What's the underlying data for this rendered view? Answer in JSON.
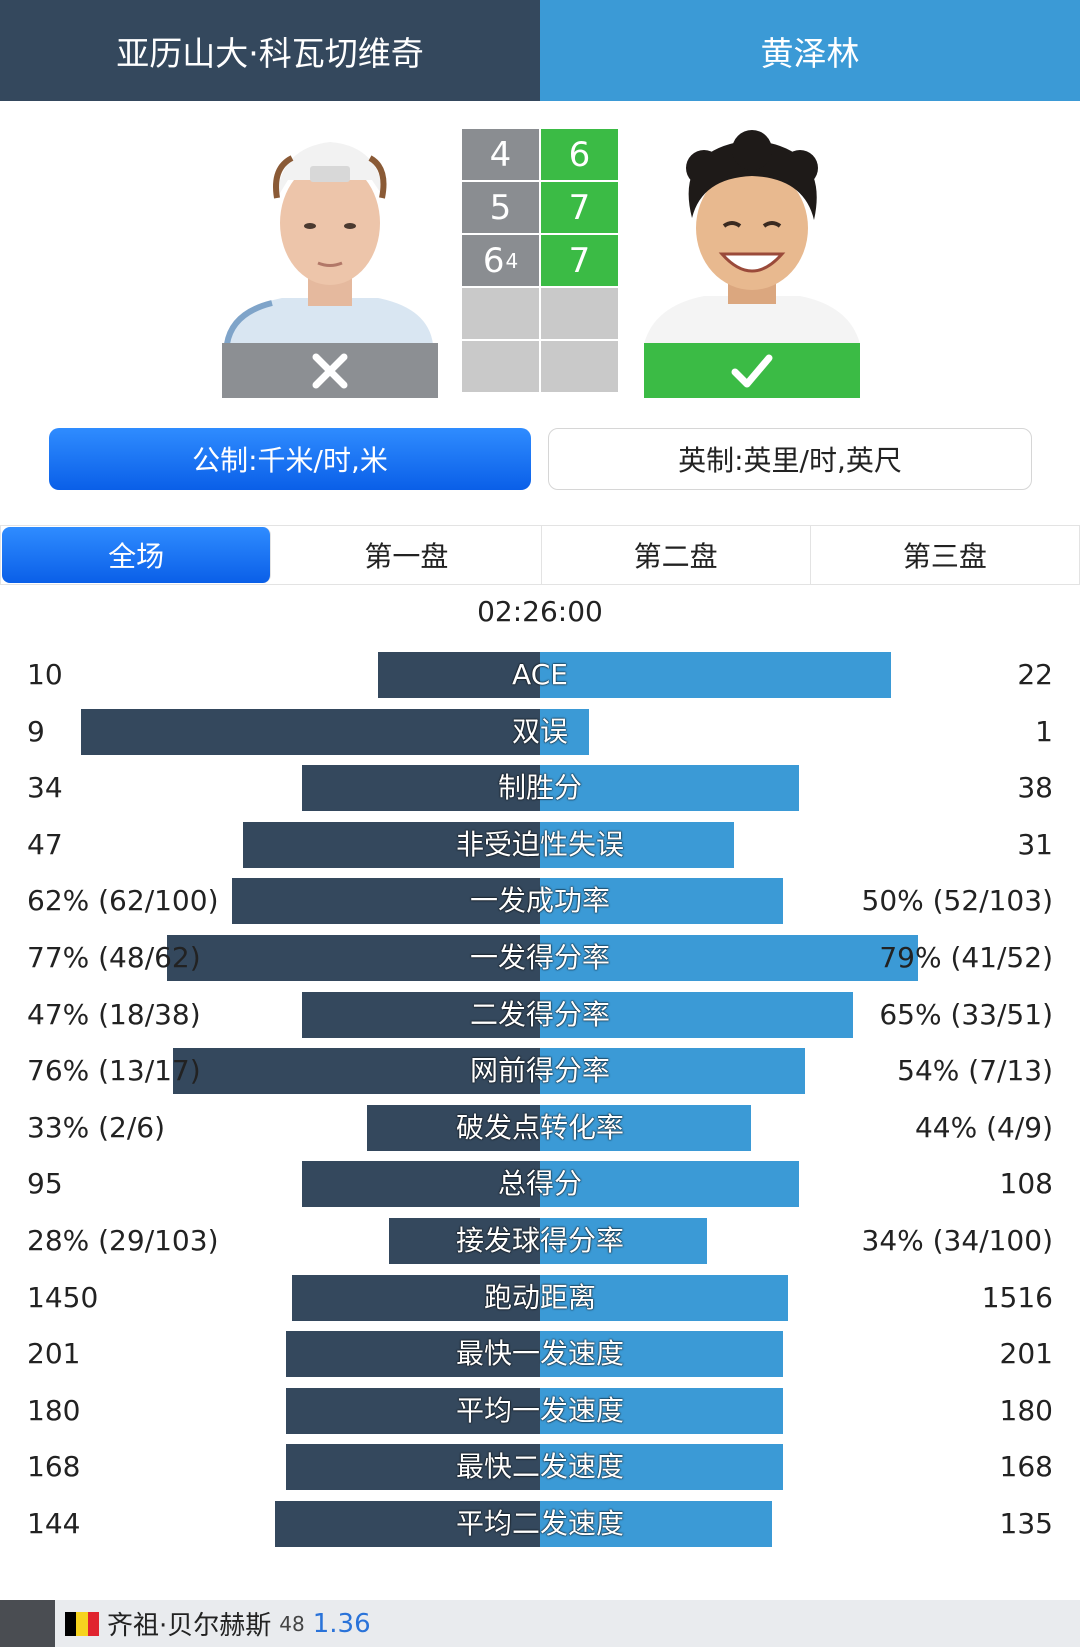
{
  "header": {
    "player1": "亚历山大·科瓦切维奇",
    "player2": "黄泽林"
  },
  "colors": {
    "player1": "#34485d",
    "player2": "#3b9ad6",
    "winner": "#3bbb45",
    "loser": "#8c8f93"
  },
  "player1": {
    "status_icon": "close-icon",
    "result": "loss"
  },
  "player2": {
    "status_icon": "check-icon",
    "result": "win"
  },
  "score": {
    "sets": [
      {
        "p1": "4",
        "p2": "6",
        "p1_tb": ""
      },
      {
        "p1": "5",
        "p2": "7",
        "p1_tb": ""
      },
      {
        "p1": "6",
        "p2": "7",
        "p1_tb": "4"
      },
      {
        "p1": "",
        "p2": "",
        "p1_tb": ""
      },
      {
        "p1": "",
        "p2": "",
        "p1_tb": ""
      }
    ]
  },
  "units": {
    "metric": "公制:千米/时,米",
    "imperial": "英制:英里/时,英尺"
  },
  "tabs": [
    "全场",
    "第一盘",
    "第二盘",
    "第三盘"
  ],
  "active_tab": 0,
  "duration": "02:26:00",
  "stats": [
    {
      "label": "ACE",
      "left": "10",
      "right": "22",
      "lw": 0.3,
      "rw": 0.65
    },
    {
      "label": "双误",
      "left": "9",
      "right": "1",
      "lw": 0.85,
      "rw": 0.09
    },
    {
      "label": "制胜分",
      "left": "34",
      "right": "38",
      "lw": 0.44,
      "rw": 0.48
    },
    {
      "label": "非受迫性失误",
      "left": "47",
      "right": "31",
      "lw": 0.55,
      "rw": 0.36
    },
    {
      "label": "一发成功率",
      "left": "62% (62/100)",
      "right": "50% (52/103)",
      "lw": 0.57,
      "rw": 0.45
    },
    {
      "label": "一发得分率",
      "left": "77% (48/62)",
      "right": "79% (41/52)",
      "lw": 0.69,
      "rw": 0.7
    },
    {
      "label": "二发得分率",
      "left": "47% (18/38)",
      "right": "65% (33/51)",
      "lw": 0.44,
      "rw": 0.58
    },
    {
      "label": "网前得分率",
      "left": "76% (13/17)",
      "right": "54% (7/13)",
      "lw": 0.68,
      "rw": 0.49
    },
    {
      "label": "破发点转化率",
      "left": "33% (2/6)",
      "right": "44% (4/9)",
      "lw": 0.32,
      "rw": 0.39
    },
    {
      "label": "总得分",
      "left": "95",
      "right": "108",
      "lw": 0.44,
      "rw": 0.48
    },
    {
      "label": "接发球得分率",
      "left": "28% (29/103)",
      "right": "34% (34/100)",
      "lw": 0.28,
      "rw": 0.31
    },
    {
      "label": "跑动距离",
      "left": "1450",
      "right": "1516",
      "lw": 0.46,
      "rw": 0.46
    },
    {
      "label": "最快一发速度",
      "left": "201",
      "right": "201",
      "lw": 0.47,
      "rw": 0.45
    },
    {
      "label": "平均一发速度",
      "left": "180",
      "right": "180",
      "lw": 0.47,
      "rw": 0.45
    },
    {
      "label": "最快二发速度",
      "left": "168",
      "right": "168",
      "lw": 0.47,
      "rw": 0.45
    },
    {
      "label": "平均二发速度",
      "left": "144",
      "right": "135",
      "lw": 0.49,
      "rw": 0.43
    }
  ],
  "footer": {
    "flag_icon": "belgium-flag-icon",
    "name": "齐祖·贝尔赫斯",
    "rank": "48",
    "odds": "1.36"
  }
}
